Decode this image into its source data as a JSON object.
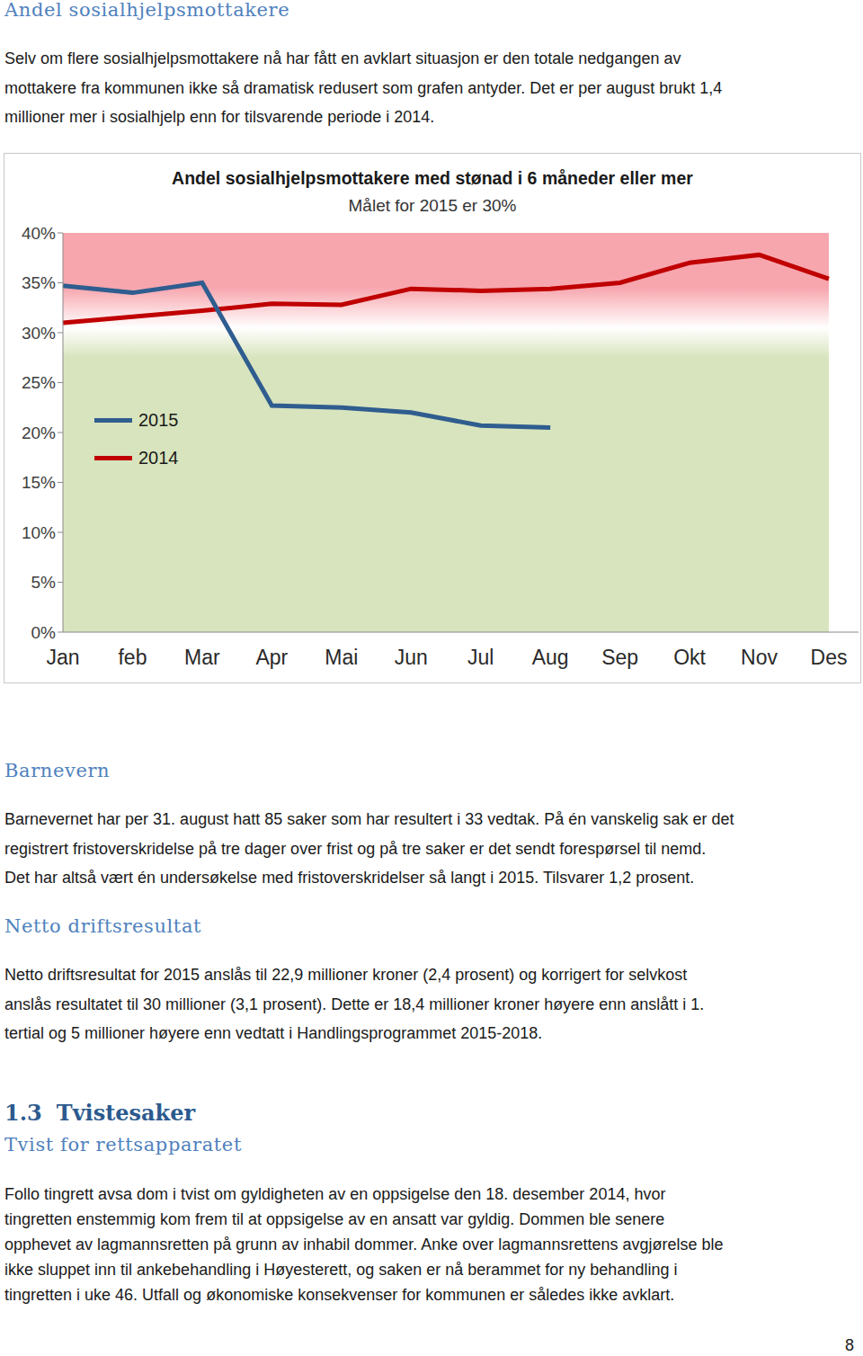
{
  "heading1": "Andel sosialhjelpsmottakere",
  "paragraph1": [
    "Selv om flere sosialhjelpsmottakere nå har fått en avklart situasjon er den totale nedgangen av",
    "mottakere fra kommunen ikke så dramatisk redusert som grafen antyder. Det er per august brukt 1,4",
    "millioner mer i sosialhjelp enn for tilsvarende periode i 2014."
  ],
  "chart_data": {
    "type": "line",
    "title": "Andel sosialhjelpsmottakere med stønad i 6 måneder eller mer",
    "subtitle": "Målet for 2015 er 30%",
    "target": 30,
    "categories": [
      "Jan",
      "feb",
      "Mar",
      "Apr",
      "Mai",
      "Jun",
      "Jul",
      "Aug",
      "Sep",
      "Okt",
      "Nov",
      "Des"
    ],
    "series": [
      {
        "name": "2015",
        "color": "#2f5d8f",
        "values": [
          34.7,
          34.0,
          35.0,
          22.7,
          22.5,
          22.0,
          20.7,
          20.5,
          null,
          null,
          null,
          null
        ]
      },
      {
        "name": "2014",
        "color": "#c00000",
        "values": [
          31.0,
          31.6,
          32.2,
          32.9,
          32.8,
          34.4,
          34.2,
          34.4,
          35.0,
          37.0,
          37.8,
          35.4
        ]
      }
    ],
    "ylim": [
      0,
      40
    ],
    "yticks": [
      {
        "value": 0,
        "label": "0%"
      },
      {
        "value": 5,
        "label": "5%"
      },
      {
        "value": 10,
        "label": "10%"
      },
      {
        "value": 15,
        "label": "15%"
      },
      {
        "value": 20,
        "label": "20%"
      },
      {
        "value": 25,
        "label": "25%"
      },
      {
        "value": 30,
        "label": "30%"
      },
      {
        "value": 35,
        "label": "35%"
      },
      {
        "value": 40,
        "label": "40%"
      }
    ],
    "grid": false,
    "legend": "left"
  },
  "heading2": "Barnevern",
  "paragraph2": [
    "Barnevernet har per 31. august hatt 85 saker som har resultert i 33 vedtak. På én vanskelig sak er det",
    "registrert fristoverskridelse på tre dager over frist og på tre saker er det sendt forespørsel til nemd.",
    "Det har altså vært én undersøkelse med fristoverskridelser så langt i 2015. Tilsvarer 1,2 prosent."
  ],
  "heading3": "Netto driftsresultat",
  "paragraph3": [
    "Netto driftsresultat for 2015 anslås til 22,9 millioner kroner (2,4 prosent) og korrigert for selvkost",
    "anslås resultatet til 30 millioner (3,1 prosent). Dette er 18,4 millioner kroner høyere enn anslått i 1.",
    "tertial og 5 millioner høyere enn vedtatt i Handlingsprogrammet 2015-2018."
  ],
  "section_number": "1.3",
  "section_title": "Tvistesaker",
  "heading4": "Tvist for rettsapparatet",
  "paragraph4": [
    "Follo tingrett avsa dom i tvist om gyldigheten av en oppsigelse den 18. desember 2014, hvor",
    "tingretten enstemmig kom frem til at oppsigelse av en ansatt var gyldig. Dommen ble senere",
    "opphevet av lagmannsretten på grunn av inhabil dommer. Anke over lagmannsrettens avgjørelse ble",
    "ikke sluppet inn til ankebehandling i Høyesterett, og saken er nå berammet for ny behandling i",
    "tingretten i uke 46. Utfall og økonomiske konsekvenser for kommunen er således ikke avklart."
  ],
  "page_number": 8
}
